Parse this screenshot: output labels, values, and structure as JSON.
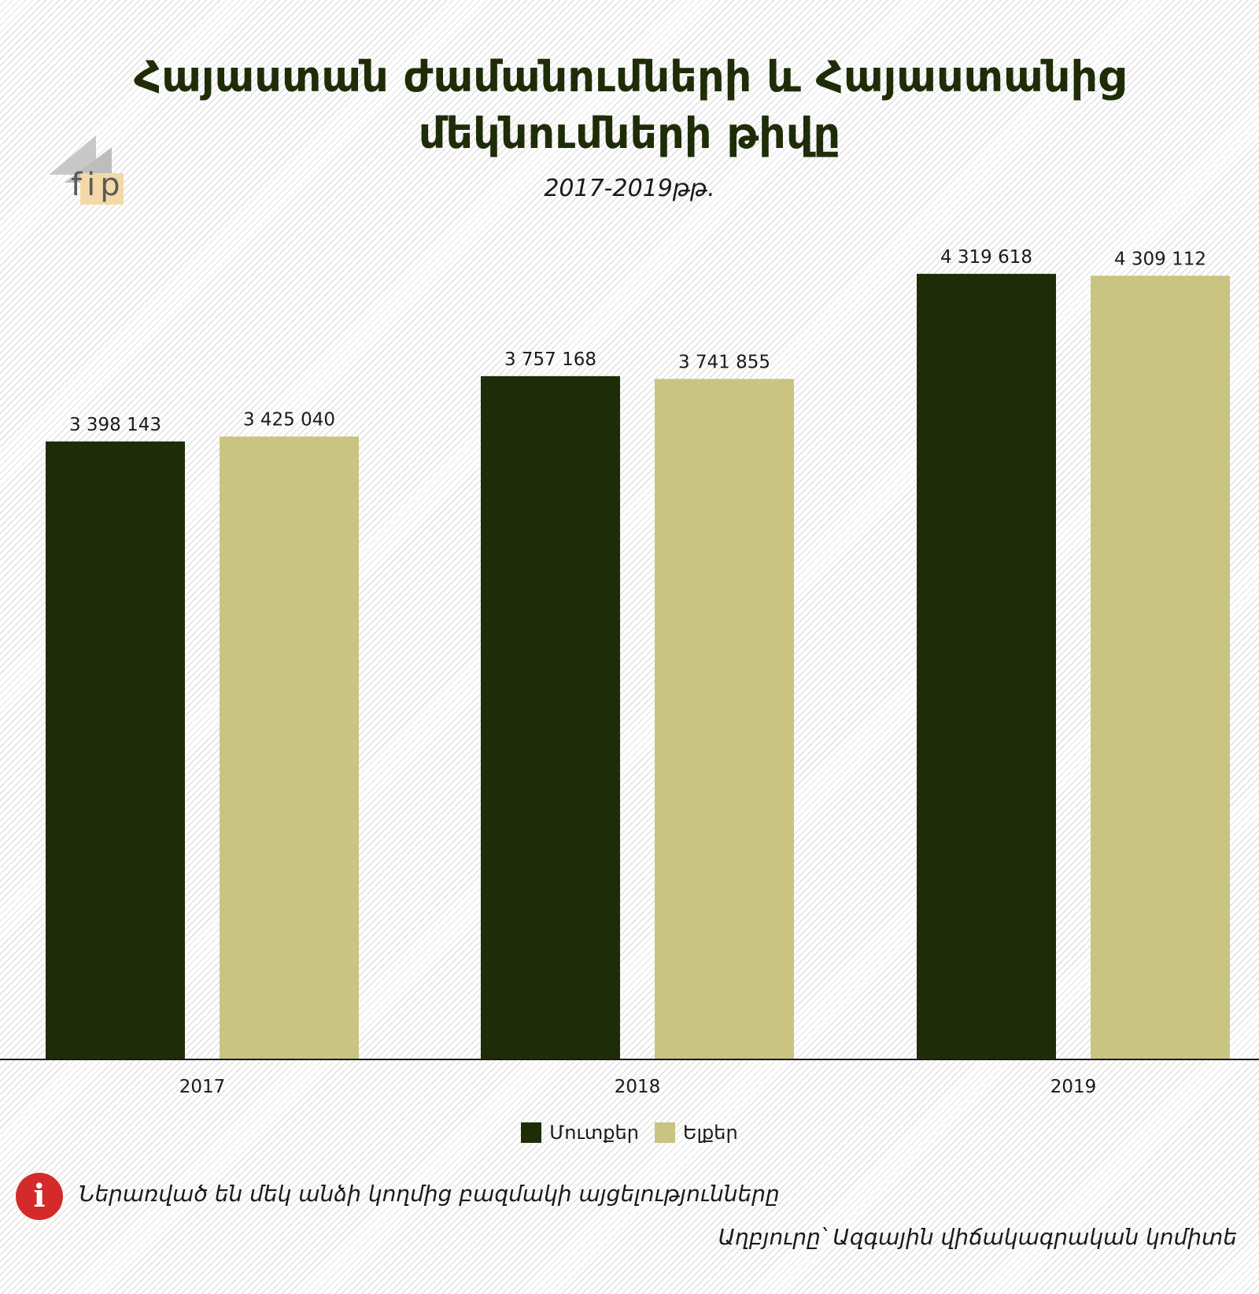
{
  "title_line1": "Հայաստան ժամանումների և Հայաստանից",
  "title_line2": "մեկնումների թիվը",
  "subtitle": "2017-2019թթ.",
  "logo_text": "fip",
  "note": "Ներառված են մեկ անձի կողմից բազմակի այցելությունները",
  "source": "Աղբյուրը՝ Ազգային վիճակագրական կոմիտե",
  "colors": {
    "arrivals": "#1e2d08",
    "departures": "#c9c482",
    "title": "#1e2d08",
    "note_icon": "#d42a2a"
  },
  "chart_data": {
    "type": "bar",
    "categories": [
      "2017",
      "2018",
      "2019"
    ],
    "series": [
      {
        "name": "Մուտքեր",
        "values": [
          3398143,
          3757168,
          4319618
        ],
        "labels": [
          "3 398 143",
          "3 757 168",
          "4 319 618"
        ]
      },
      {
        "name": "Ելքեր",
        "values": [
          3425040,
          3741855,
          4309112
        ],
        "labels": [
          "3 425 040",
          "3 741 855",
          "4 309 112"
        ]
      }
    ],
    "ylim": [
      0,
      4700000
    ],
    "grid": false,
    "legend_position": "bottom-center"
  }
}
